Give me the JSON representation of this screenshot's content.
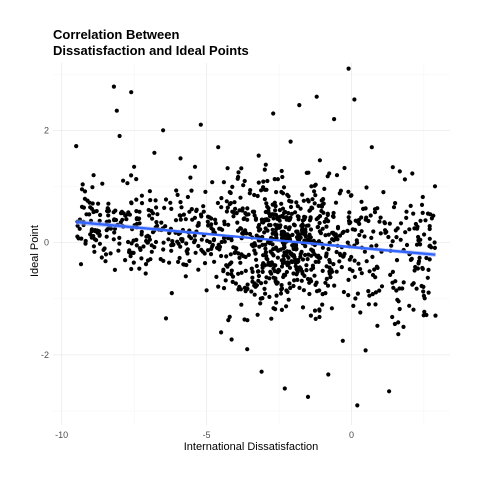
{
  "chart_data": {
    "type": "scatter",
    "title": [
      "Correlation Between",
      "Dissatisfaction and Ideal Points"
    ],
    "xlabel": "International Dissatisfaction",
    "ylabel": "Ideal Point",
    "xlim": [
      -10.3,
      3.4
    ],
    "ylim": [
      -3.25,
      3.2
    ],
    "x_ticks": [
      -10,
      -5,
      0
    ],
    "x_tick_labels": [
      "-10",
      "-5",
      "0"
    ],
    "y_ticks": [
      -2,
      0,
      2
    ],
    "y_tick_labels": [
      "-2",
      "0",
      "2"
    ],
    "grid": true,
    "legend": "none",
    "point_color": "#000000",
    "series": [
      {
        "points": [
          [
            -9.5,
            1.72
          ],
          [
            -9.3,
            0.95
          ],
          [
            -9.2,
            0.78
          ],
          [
            -8.9,
            1.2
          ],
          [
            -8.6,
            1.05
          ],
          [
            -8.4,
            0.6
          ],
          [
            -8.2,
            2.78
          ],
          [
            -8.1,
            2.35
          ],
          [
            -8.0,
            1.9
          ],
          [
            -7.9,
            0.3
          ],
          [
            -7.6,
            2.68
          ],
          [
            -7.5,
            1.35
          ],
          [
            -7.3,
            -0.1
          ],
          [
            -7.1,
            -0.55
          ],
          [
            -6.8,
            1.6
          ],
          [
            -6.5,
            2.0
          ],
          [
            -6.4,
            -1.35
          ],
          [
            -6.2,
            -0.9
          ],
          [
            -6.0,
            0.85
          ],
          [
            -5.9,
            1.5
          ],
          [
            -5.7,
            -0.4
          ],
          [
            -5.4,
            1.35
          ],
          [
            -5.2,
            2.1
          ],
          [
            -5.0,
            -0.85
          ],
          [
            -4.9,
            0.45
          ],
          [
            -4.6,
            1.7
          ],
          [
            -4.5,
            -1.6
          ],
          [
            -4.2,
            0.9
          ],
          [
            -4.1,
            -0.7
          ],
          [
            -3.9,
            1.25
          ],
          [
            -3.6,
            -1.9
          ],
          [
            -3.4,
            0.55
          ],
          [
            -3.2,
            1.55
          ],
          [
            -3.1,
            -2.3
          ],
          [
            -2.9,
            -0.3
          ],
          [
            -2.7,
            2.3
          ],
          [
            -2.6,
            0.9
          ],
          [
            -2.4,
            -1.2
          ],
          [
            -2.3,
            -2.6
          ],
          [
            -2.1,
            1.8
          ],
          [
            -2.0,
            -0.55
          ],
          [
            -1.8,
            2.45
          ],
          [
            -1.7,
            0.2
          ],
          [
            -1.5,
            -2.75
          ],
          [
            -1.4,
            -1.3
          ],
          [
            -1.2,
            2.6
          ],
          [
            -1.1,
            0.35
          ],
          [
            -0.9,
            -0.9
          ],
          [
            -0.8,
            -2.35
          ],
          [
            -0.6,
            2.2
          ],
          [
            -0.5,
            1.2
          ],
          [
            -0.4,
            -0.2
          ],
          [
            -0.3,
            -1.75
          ],
          [
            -0.1,
            3.1
          ],
          [
            0.1,
            2.55
          ],
          [
            0.2,
            -2.9
          ],
          [
            0.4,
            0.6
          ],
          [
            0.6,
            -1.1
          ],
          [
            0.7,
            1.7
          ],
          [
            0.9,
            -0.45
          ],
          [
            1.1,
            0.9
          ],
          [
            1.3,
            -2.65
          ],
          [
            1.5,
            -1.45
          ],
          [
            1.7,
            0.05
          ],
          [
            1.9,
            0.55
          ],
          [
            2.1,
            -0.75
          ],
          [
            2.3,
            0.1
          ],
          [
            2.5,
            -0.95
          ],
          [
            2.7,
            -0.3
          ],
          [
            2.9,
            -1.3
          ]
        ]
      }
    ],
    "trend": {
      "label": "",
      "slope": -0.047,
      "intercept": -0.08,
      "x_range": [
        -9.5,
        2.9
      ],
      "color": "#3366ff",
      "band_color": "#99aaff"
    }
  }
}
